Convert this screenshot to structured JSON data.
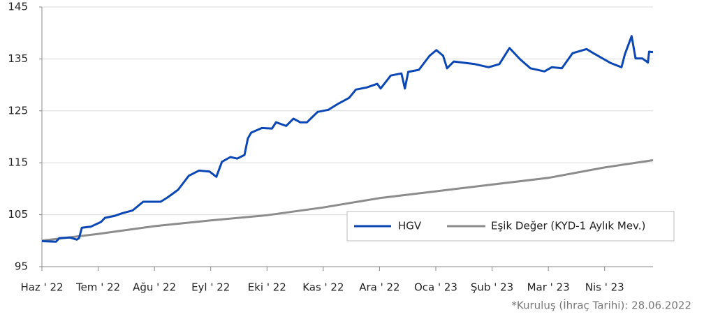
{
  "chart_data": {
    "type": "line",
    "xlim": [
      0,
      10.86
    ],
    "xticks": [
      {
        "value": 0,
        "label": "Haz ' 22"
      },
      {
        "value": 1,
        "label": "Tem ' 22"
      },
      {
        "value": 2,
        "label": "Ağu ' 22"
      },
      {
        "value": 3,
        "label": "Eyl ' 22"
      },
      {
        "value": 4,
        "label": "Eki ' 22"
      },
      {
        "value": 5,
        "label": "Kas ' 22"
      },
      {
        "value": 6,
        "label": "Ara ' 22"
      },
      {
        "value": 7,
        "label": "Oca ' 23"
      },
      {
        "value": 8,
        "label": "Şub ' 23"
      },
      {
        "value": 9,
        "label": "Mar ' 23"
      },
      {
        "value": 10,
        "label": "Nis ' 23"
      }
    ],
    "ylim": [
      95,
      145
    ],
    "yticks": [
      95,
      105,
      115,
      125,
      135,
      145
    ],
    "grid": true,
    "legend": "bottom-right",
    "annotation": "*Kuruluş (İhraç Tarihi): 28.06.2022",
    "series": [
      {
        "name": "HGV",
        "color": "#0a47b5",
        "x": [
          0,
          0.25,
          0.31,
          0.5,
          0.62,
          0.66,
          0.71,
          0.87,
          1.05,
          1.12,
          1.3,
          1.43,
          1.61,
          1.8,
          2.11,
          2.23,
          2.42,
          2.61,
          2.79,
          2.98,
          3.1,
          3.2,
          3.35,
          3.47,
          3.6,
          3.66,
          3.72,
          3.91,
          4.09,
          4.16,
          4.34,
          4.47,
          4.59,
          4.71,
          4.9,
          5.09,
          5.27,
          5.46,
          5.58,
          5.77,
          5.96,
          6.02,
          6.2,
          6.39,
          6.45,
          6.51,
          6.7,
          6.89,
          7.01,
          7.13,
          7.2,
          7.32,
          7.69,
          7.94,
          8.13,
          8.31,
          8.5,
          8.68,
          8.93,
          9.06,
          9.24,
          9.43,
          9.68,
          9.8,
          10.11,
          10.3,
          10.36,
          10.48,
          10.55,
          10.67,
          10.77,
          10.79,
          10.86
        ],
        "values": [
          99.9,
          99.8,
          100.5,
          100.6,
          100.2,
          100.5,
          102.5,
          102.7,
          103.6,
          104.4,
          104.8,
          105.3,
          105.8,
          107.5,
          107.5,
          108.3,
          109.8,
          112.5,
          113.5,
          113.3,
          112.3,
          115.2,
          116.1,
          115.8,
          116.5,
          119.7,
          120.8,
          121.7,
          121.6,
          122.8,
          122.1,
          123.5,
          122.8,
          122.8,
          124.8,
          125.2,
          126.4,
          127.5,
          129.1,
          129.5,
          130.2,
          129.3,
          131.8,
          132.2,
          129.3,
          132.5,
          132.9,
          135.6,
          136.7,
          135.6,
          133.2,
          134.5,
          134.0,
          133.4,
          134.0,
          137.1,
          134.9,
          133.2,
          132.6,
          133.4,
          133.2,
          136.1,
          136.9,
          136.1,
          134.2,
          133.4,
          135.9,
          139.4,
          135.1,
          135.1,
          134.3,
          136.4,
          136.3
        ]
      },
      {
        "name": "Eşik Değer (KYD-1 Aylık Mev.)",
        "color": "#8c8c8c",
        "x": [
          0,
          1,
          2,
          3,
          4,
          5,
          6,
          7,
          8,
          9,
          10,
          10.86
        ],
        "values": [
          100,
          101.3,
          102.8,
          103.9,
          104.9,
          106.4,
          108.2,
          109.5,
          110.8,
          112.1,
          114.1,
          115.5
        ]
      }
    ]
  }
}
